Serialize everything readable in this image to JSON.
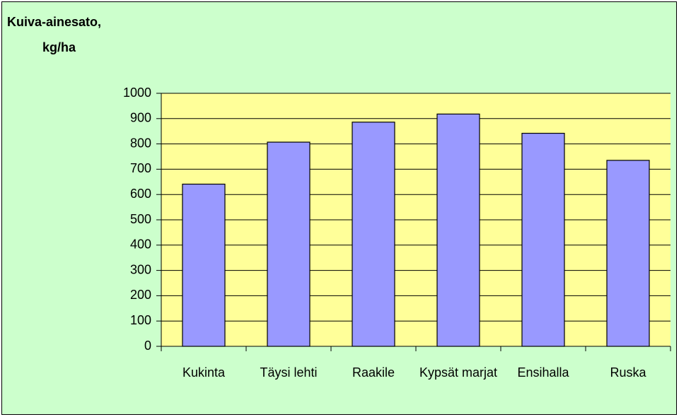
{
  "chart_data": {
    "type": "bar",
    "ylabel": [
      "Kuiva-ainesato,",
      "kg/ha"
    ],
    "categories": [
      "Kukinta",
      "Täysi lehti",
      "Raakile",
      "Kypsät marjat",
      "Ensihalla",
      "Ruska"
    ],
    "values": [
      641,
      807,
      886,
      918,
      842,
      735
    ],
    "color": "#9999ff",
    "ylim": [
      0,
      1000
    ],
    "yticks": [
      0,
      100,
      200,
      300,
      400,
      500,
      600,
      700,
      800,
      900,
      1000
    ],
    "grid": true
  }
}
